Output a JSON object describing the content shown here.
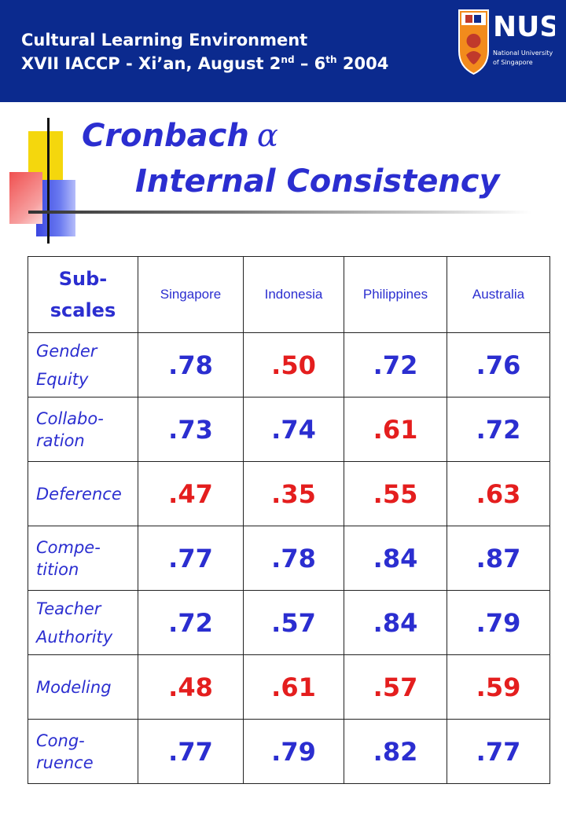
{
  "banner": {
    "line1": "Cultural Learning Environment",
    "line2_main": "XVII IACCP - Xi’an, August 2",
    "line2_sup1": "nd",
    "line2_mid": " – 6",
    "line2_sup2": "th",
    "line2_end": " 2004",
    "logo_text": "NUS",
    "logo_sub1": "National University",
    "logo_sub2": "of Singapore"
  },
  "title": {
    "line1": "Cronbach",
    "alpha": "α",
    "line2": "Internal Consistency"
  },
  "table": {
    "header": {
      "first_line1": "Sub-",
      "first_line2": "scales",
      "countries": [
        "Singapore",
        "Indonesia",
        "Philippines",
        "Australia"
      ]
    },
    "rows": [
      {
        "label1": "Gender",
        "label2": "Equity",
        "values": [
          ".78",
          ".50",
          ".72",
          ".76"
        ],
        "colors": [
          "blue",
          "red",
          "blue",
          "blue"
        ]
      },
      {
        "label1": "Collabo-",
        "label2": "ration",
        "values": [
          ".73",
          ".74",
          ".61",
          ".72"
        ],
        "colors": [
          "blue",
          "blue",
          "red",
          "blue"
        ]
      },
      {
        "label1": "Deference",
        "label2": "",
        "values": [
          ".47",
          ".35",
          ".55",
          ".63"
        ],
        "colors": [
          "red",
          "red",
          "red",
          "red"
        ]
      },
      {
        "label1": "Compe-",
        "label2": "tition",
        "values": [
          ".77",
          ".78",
          ".84",
          ".87"
        ],
        "colors": [
          "blue",
          "blue",
          "blue",
          "blue"
        ]
      },
      {
        "label1": "Teacher",
        "label2": "Authority",
        "values": [
          ".72",
          ".57",
          ".84",
          ".79"
        ],
        "colors": [
          "blue",
          "blue",
          "blue",
          "blue"
        ]
      },
      {
        "label1": "Modeling",
        "label2": "",
        "values": [
          ".48",
          ".61",
          ".57",
          ".59"
        ],
        "colors": [
          "red",
          "red",
          "red",
          "red"
        ]
      },
      {
        "label1": "Cong-",
        "label2": "ruence",
        "values": [
          ".77",
          ".79",
          ".82",
          ".77"
        ],
        "colors": [
          "blue",
          "blue",
          "blue",
          "blue"
        ]
      }
    ]
  },
  "colors": {
    "banner": "#0b2a8e",
    "text_blue": "#2b2ed0",
    "text_red": "#e41e1e"
  }
}
